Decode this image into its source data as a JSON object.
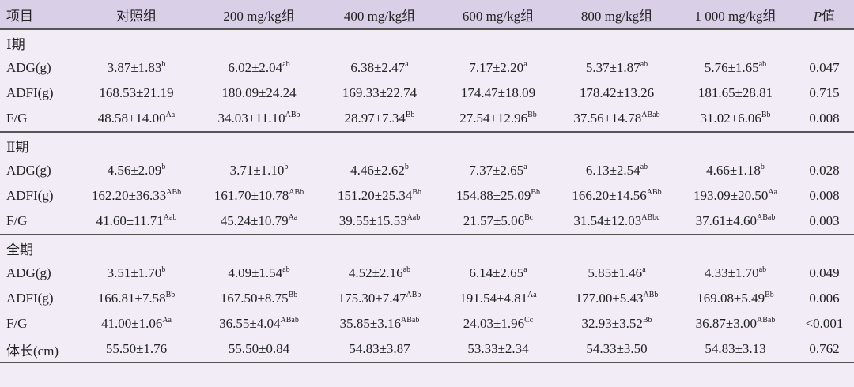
{
  "header": {
    "item": "项目",
    "groups": [
      "对照组",
      "200 mg/kg组",
      "400 mg/kg组",
      "600 mg/kg组",
      "800 mg/kg组",
      "1 000 mg/kg组"
    ],
    "p_symbol": "P",
    "p_suffix": "值"
  },
  "sections": [
    {
      "title": "Ⅰ期",
      "rows": [
        {
          "label": "ADG(g)",
          "cells": [
            {
              "v": "3.87±1.83",
              "s": "b"
            },
            {
              "v": "6.02±2.04",
              "s": "ab"
            },
            {
              "v": "6.38±2.47",
              "s": "a"
            },
            {
              "v": "7.17±2.20",
              "s": "a"
            },
            {
              "v": "5.37±1.87",
              "s": "ab"
            },
            {
              "v": "5.76±1.65",
              "s": "ab"
            }
          ],
          "p": "0.047"
        },
        {
          "label": "ADFI(g)",
          "cells": [
            {
              "v": "168.53±21.19"
            },
            {
              "v": "180.09±24.24"
            },
            {
              "v": "169.33±22.74"
            },
            {
              "v": "174.47±18.09"
            },
            {
              "v": "178.42±13.26"
            },
            {
              "v": "181.65±28.81"
            }
          ],
          "p": "0.715"
        },
        {
          "label": "F/G",
          "cells": [
            {
              "v": "48.58±14.00",
              "s": "Aa"
            },
            {
              "v": "34.03±11.10",
              "s": "ABb"
            },
            {
              "v": "28.97±7.34",
              "s": "Bb"
            },
            {
              "v": "27.54±12.96",
              "s": "Bb"
            },
            {
              "v": "37.56±14.78",
              "s": "ABab"
            },
            {
              "v": "31.02±6.06",
              "s": "Bb"
            }
          ],
          "p": "0.008"
        }
      ]
    },
    {
      "title": "Ⅱ期",
      "rows": [
        {
          "label": "ADG(g)",
          "cells": [
            {
              "v": "4.56±2.09",
              "s": "b"
            },
            {
              "v": "3.71±1.10",
              "s": "b"
            },
            {
              "v": "4.46±2.62",
              "s": "b"
            },
            {
              "v": "7.37±2.65",
              "s": "a"
            },
            {
              "v": "6.13±2.54",
              "s": "ab"
            },
            {
              "v": "4.66±1.18",
              "s": "b"
            }
          ],
          "p": "0.028"
        },
        {
          "label": "ADFI(g)",
          "cells": [
            {
              "v": "162.20±36.33",
              "s": "ABb"
            },
            {
              "v": "161.70±10.78",
              "s": "ABb"
            },
            {
              "v": "151.20±25.34",
              "s": "Bb"
            },
            {
              "v": "154.88±25.09",
              "s": "Bb"
            },
            {
              "v": "166.20±14.56",
              "s": "ABb"
            },
            {
              "v": "193.09±20.50",
              "s": "Aa"
            }
          ],
          "p": "0.008"
        },
        {
          "label": "F/G",
          "cells": [
            {
              "v": "41.60±11.71",
              "s": "Aab"
            },
            {
              "v": "45.24±10.79",
              "s": "Aa"
            },
            {
              "v": "39.55±15.53",
              "s": "Aab"
            },
            {
              "v": "21.57±5.06",
              "s": "Bc"
            },
            {
              "v": "31.54±12.03",
              "s": "ABbc"
            },
            {
              "v": "37.61±4.60",
              "s": "ABab"
            }
          ],
          "p": "0.003"
        }
      ]
    },
    {
      "title": "全期",
      "rows": [
        {
          "label": "ADG(g)",
          "cells": [
            {
              "v": "3.51±1.70",
              "s": "b"
            },
            {
              "v": "4.09±1.54",
              "s": "ab"
            },
            {
              "v": "4.52±2.16",
              "s": "ab"
            },
            {
              "v": "6.14±2.65",
              "s": "a"
            },
            {
              "v": "5.85±1.46",
              "s": "a"
            },
            {
              "v": "4.33±1.70",
              "s": "ab"
            }
          ],
          "p": "0.049"
        },
        {
          "label": "ADFI(g)",
          "cells": [
            {
              "v": "166.81±7.58",
              "s": "Bb"
            },
            {
              "v": "167.50±8.75",
              "s": "Bb"
            },
            {
              "v": "175.30±7.47",
              "s": "ABb"
            },
            {
              "v": "191.54±4.81",
              "s": "Aa"
            },
            {
              "v": "177.00±5.43",
              "s": "ABb"
            },
            {
              "v": "169.08±5.49",
              "s": "Bb"
            }
          ],
          "p": "0.006"
        },
        {
          "label": "F/G",
          "cells": [
            {
              "v": "41.00±1.06",
              "s": "Aa"
            },
            {
              "v": "36.55±4.04",
              "s": "ABab"
            },
            {
              "v": "35.85±3.16",
              "s": "ABab"
            },
            {
              "v": "24.03±1.96",
              "s": "Cc"
            },
            {
              "v": "32.93±3.52",
              "s": "Bb"
            },
            {
              "v": "36.87±3.00",
              "s": "ABab"
            }
          ],
          "p": "<0.001"
        },
        {
          "label": "体长(cm)",
          "cells": [
            {
              "v": "55.50±1.76"
            },
            {
              "v": "55.50±0.84"
            },
            {
              "v": "54.83±3.87"
            },
            {
              "v": "53.33±2.34"
            },
            {
              "v": "54.33±3.50"
            },
            {
              "v": "54.83±3.13"
            }
          ],
          "p": "0.762"
        }
      ]
    }
  ]
}
